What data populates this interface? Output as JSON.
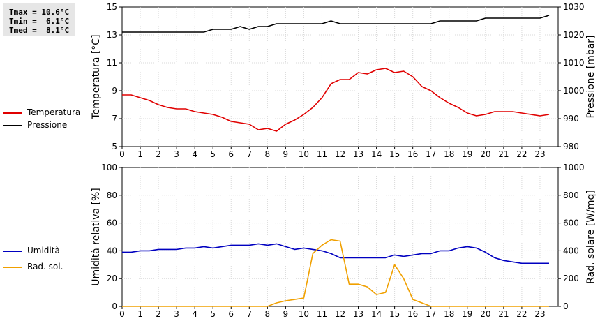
{
  "stats": {
    "tmax": "Tmax = 10.6°C",
    "tmin": "Tmin =  6.1°C",
    "tmed": "Tmed =  8.1°C"
  },
  "legend_top": [
    {
      "label": "Temperatura",
      "color": "#e00000"
    },
    {
      "label": "Pressione",
      "color": "#000000"
    }
  ],
  "legend_bottom": [
    {
      "label": "Umidità",
      "color": "#0000c0"
    },
    {
      "label": "Rad. sol.",
      "color": "#f0a000"
    }
  ],
  "chart_data": [
    {
      "type": "line",
      "xlim": [
        0,
        24
      ],
      "x_ticks": [
        "0",
        "1",
        "2",
        "3",
        "4",
        "5",
        "6",
        "7",
        "8",
        "9",
        "10",
        "11",
        "12",
        "13",
        "14",
        "15",
        "16",
        "17",
        "18",
        "19",
        "20",
        "21",
        "22",
        "23"
      ],
      "ylabel_left": "Temperatura [°C]",
      "ylim_left": [
        5,
        15
      ],
      "y_ticks_left": [
        "5",
        "7",
        "9",
        "11",
        "13",
        "15"
      ],
      "ylabel_right": "Pressione [mbar]",
      "ylim_right": [
        980,
        1030
      ],
      "y_ticks_right": [
        "980",
        "990",
        "1000",
        "1010",
        "1020",
        "1030"
      ],
      "grid": true,
      "series": [
        {
          "name": "Temperatura",
          "axis": "left",
          "color": "#e00000",
          "x": [
            0,
            0.5,
            1,
            1.5,
            2,
            2.5,
            3,
            3.5,
            4,
            4.5,
            5,
            5.5,
            6,
            6.5,
            7,
            7.5,
            8,
            8.5,
            9,
            9.5,
            10,
            10.5,
            11,
            11.5,
            12,
            12.5,
            13,
            13.5,
            14,
            14.5,
            15,
            15.5,
            16,
            16.5,
            17,
            17.5,
            18,
            18.5,
            19,
            19.5,
            20,
            20.5,
            21,
            21.5,
            22,
            22.5,
            23,
            23.5
          ],
          "y": [
            8.7,
            8.7,
            8.5,
            8.3,
            8.0,
            7.8,
            7.7,
            7.7,
            7.5,
            7.4,
            7.3,
            7.1,
            6.8,
            6.7,
            6.6,
            6.2,
            6.3,
            6.1,
            6.6,
            6.9,
            7.3,
            7.8,
            8.5,
            9.5,
            9.8,
            9.8,
            10.3,
            10.2,
            10.5,
            10.6,
            10.3,
            10.4,
            10.0,
            9.3,
            9.0,
            8.5,
            8.1,
            7.8,
            7.4,
            7.2,
            7.3,
            7.5,
            7.5,
            7.5,
            7.4,
            7.3,
            7.2,
            7.3
          ]
        },
        {
          "name": "Pressione",
          "axis": "right",
          "color": "#000000",
          "x": [
            0,
            0.5,
            1,
            1.5,
            2,
            2.5,
            3,
            3.5,
            4,
            4.5,
            5,
            5.5,
            6,
            6.5,
            7,
            7.5,
            8,
            8.5,
            9,
            9.5,
            10,
            10.5,
            11,
            11.5,
            12,
            12.5,
            13,
            13.5,
            14,
            14.5,
            15,
            15.5,
            16,
            16.5,
            17,
            17.5,
            18,
            18.5,
            19,
            19.5,
            20,
            20.5,
            21,
            21.5,
            22,
            22.5,
            23,
            23.5
          ],
          "y": [
            1021,
            1021,
            1021,
            1021,
            1021,
            1021,
            1021,
            1021,
            1021,
            1021,
            1022,
            1022,
            1022,
            1023,
            1022,
            1023,
            1023,
            1024,
            1024,
            1024,
            1024,
            1024,
            1024,
            1025,
            1024,
            1024,
            1024,
            1024,
            1024,
            1024,
            1024,
            1024,
            1024,
            1024,
            1024,
            1025,
            1025,
            1025,
            1025,
            1025,
            1026,
            1026,
            1026,
            1026,
            1026,
            1026,
            1026,
            1027
          ]
        }
      ]
    },
    {
      "type": "line",
      "xlim": [
        0,
        24
      ],
      "x_ticks": [
        "0",
        "1",
        "2",
        "3",
        "4",
        "5",
        "6",
        "7",
        "8",
        "9",
        "10",
        "11",
        "12",
        "13",
        "14",
        "15",
        "16",
        "17",
        "18",
        "19",
        "20",
        "21",
        "22",
        "23"
      ],
      "ylabel_left": "Umidità relativa [%]",
      "ylim_left": [
        0,
        100
      ],
      "y_ticks_left": [
        "0",
        "20",
        "40",
        "60",
        "80",
        "100"
      ],
      "ylabel_right": "Rad. solare [W/mq]",
      "ylim_right": [
        0,
        1000
      ],
      "y_ticks_right": [
        "0",
        "200",
        "400",
        "600",
        "800",
        "1000"
      ],
      "grid": true,
      "series": [
        {
          "name": "Umidità",
          "axis": "left",
          "color": "#0000c0",
          "x": [
            0,
            0.5,
            1,
            1.5,
            2,
            2.5,
            3,
            3.5,
            4,
            4.5,
            5,
            5.5,
            6,
            6.5,
            7,
            7.5,
            8,
            8.5,
            9,
            9.5,
            10,
            10.5,
            11,
            11.5,
            12,
            12.5,
            13,
            13.5,
            14,
            14.5,
            15,
            15.5,
            16,
            16.5,
            17,
            17.5,
            18,
            18.5,
            19,
            19.5,
            20,
            20.5,
            21,
            21.5,
            22,
            22.5,
            23,
            23.5
          ],
          "y": [
            39,
            39,
            40,
            40,
            41,
            41,
            41,
            42,
            42,
            43,
            42,
            43,
            44,
            44,
            44,
            45,
            44,
            45,
            43,
            41,
            42,
            41,
            40,
            38,
            35,
            35,
            35,
            35,
            35,
            35,
            37,
            36,
            37,
            38,
            38,
            40,
            40,
            42,
            43,
            42,
            39,
            35,
            33,
            32,
            31,
            31,
            31,
            31
          ]
        },
        {
          "name": "Rad. sol.",
          "axis": "right",
          "color": "#f0a000",
          "x": [
            0,
            0.5,
            1,
            1.5,
            2,
            2.5,
            3,
            3.5,
            4,
            4.5,
            5,
            5.5,
            6,
            6.5,
            7,
            7.5,
            8,
            8.5,
            9,
            9.5,
            10,
            10.5,
            11,
            11.5,
            12,
            12.5,
            13,
            13.5,
            14,
            14.5,
            15,
            15.5,
            16,
            16.5,
            17,
            17.5,
            18,
            18.5,
            19,
            19.5,
            20,
            20.5,
            21,
            21.5,
            22,
            22.5,
            23,
            23.5
          ],
          "y": [
            0,
            0,
            0,
            0,
            0,
            0,
            0,
            0,
            0,
            0,
            0,
            0,
            0,
            0,
            0,
            0,
            0,
            25,
            40,
            50,
            60,
            380,
            440,
            480,
            470,
            160,
            160,
            140,
            85,
            100,
            300,
            200,
            50,
            25,
            0,
            0,
            0,
            0,
            0,
            0,
            0,
            0,
            0,
            0,
            0,
            0,
            0,
            0
          ]
        }
      ]
    }
  ]
}
